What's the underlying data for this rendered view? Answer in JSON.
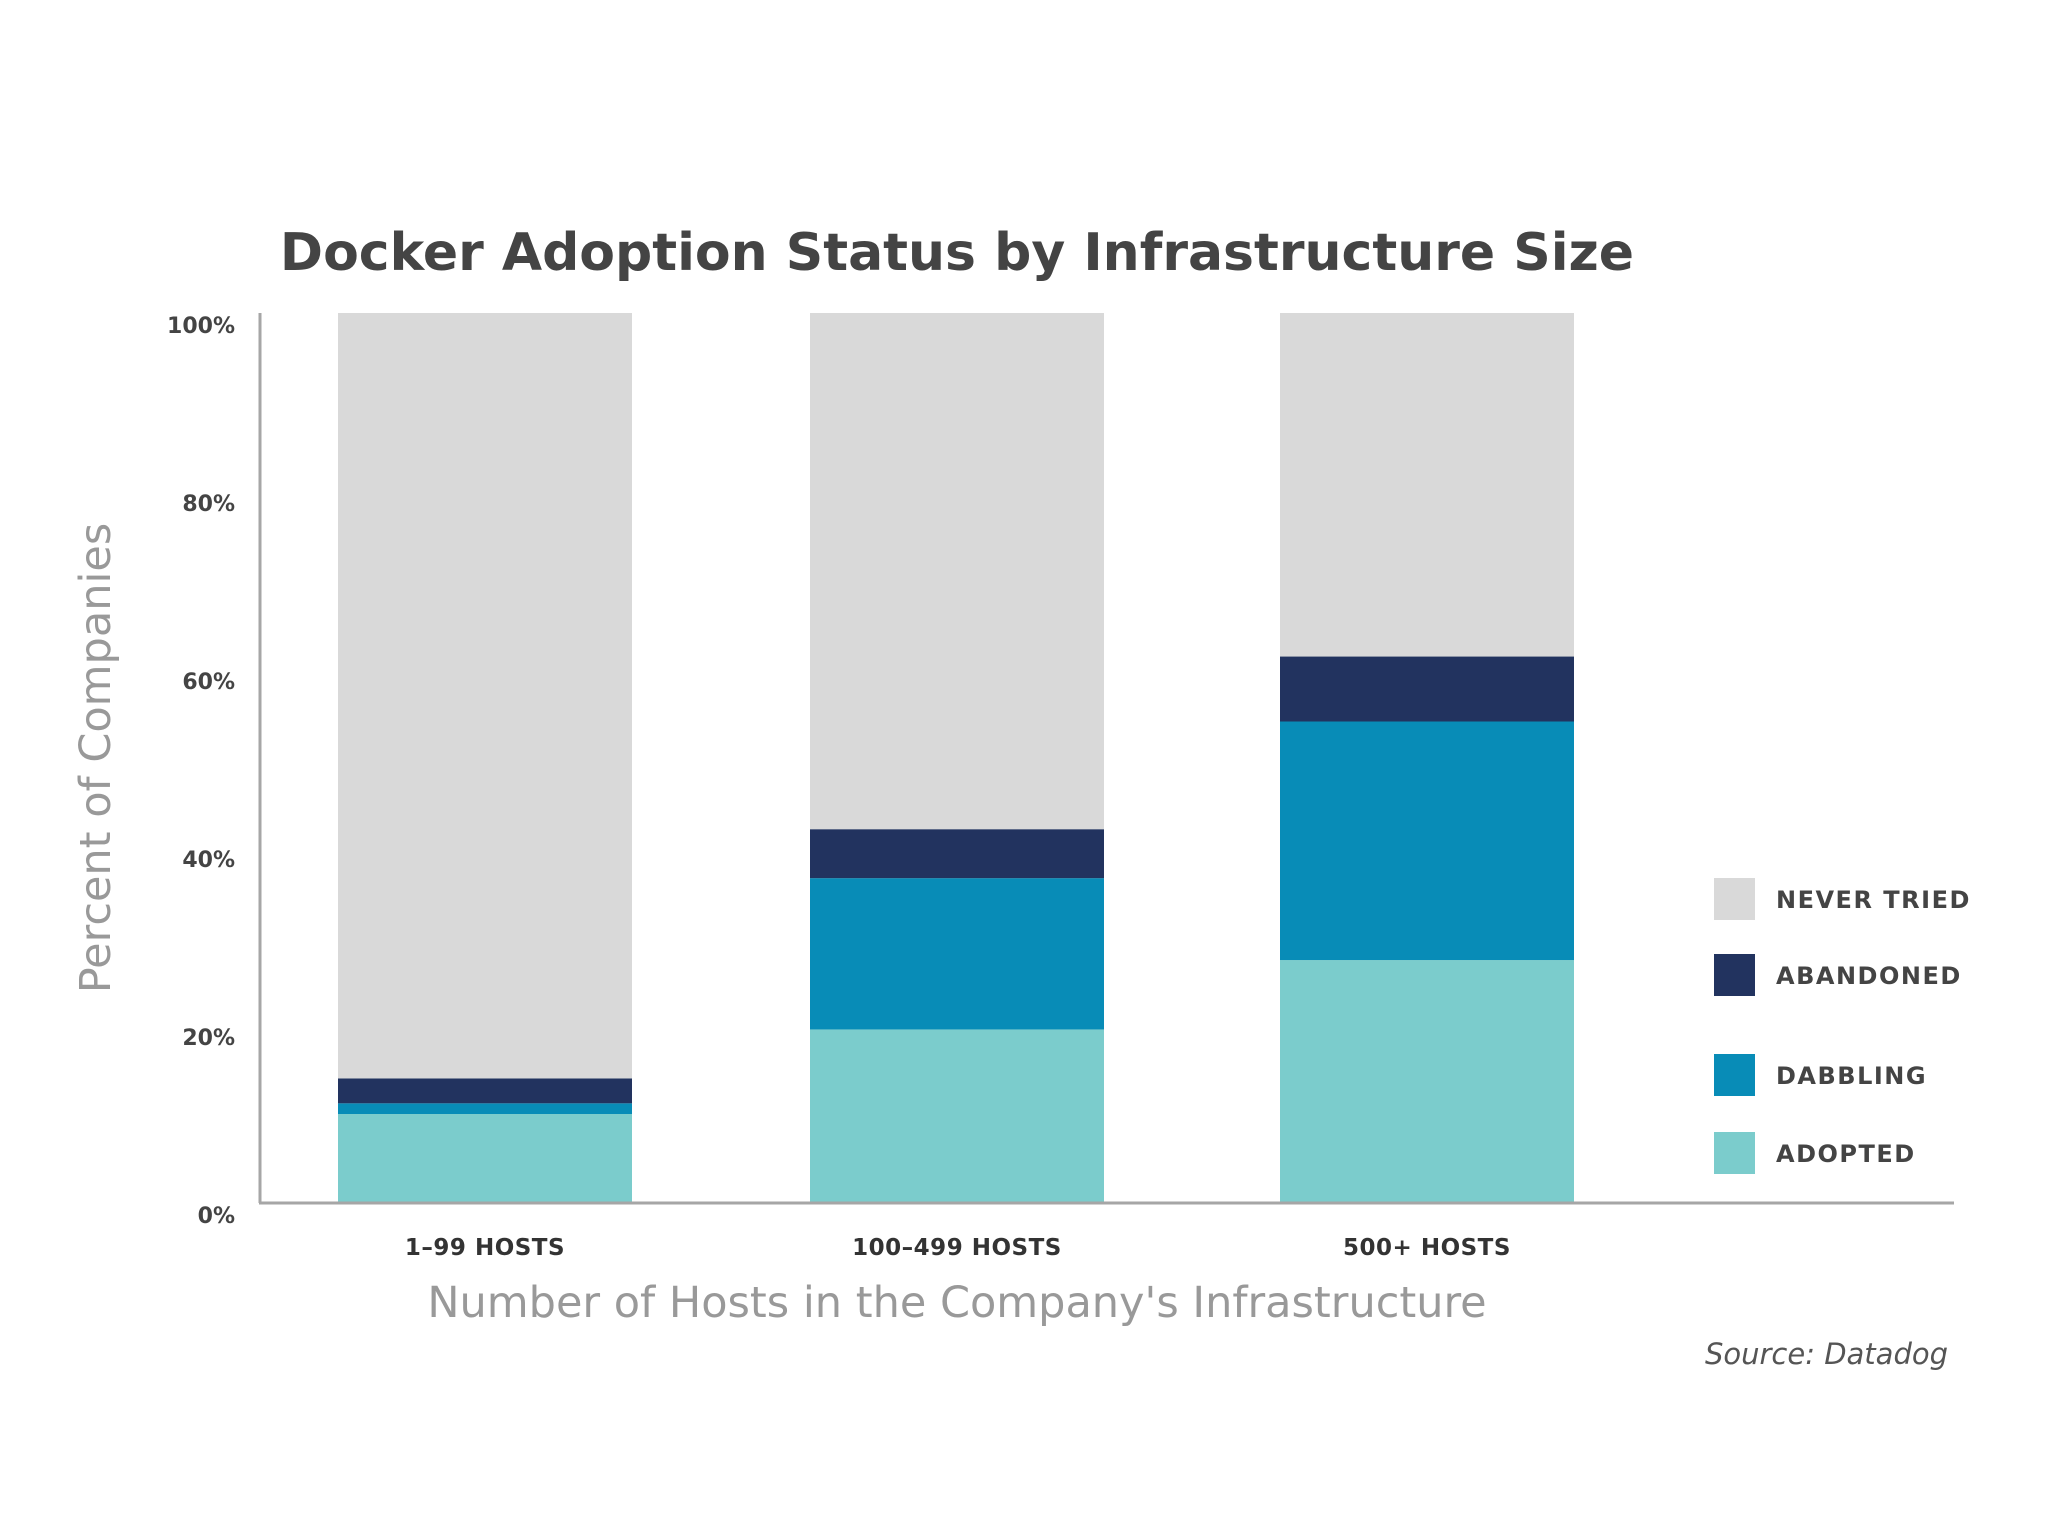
{
  "chart_data": {
    "type": "bar",
    "stacked": true,
    "title": "Docker Adoption Status by Infrastructure Size",
    "xlabel": "Number of Hosts in the Company's Infrastructure",
    "ylabel": "Percent of Companies",
    "ylim": [
      0,
      100
    ],
    "yticks": [
      0,
      20,
      40,
      60,
      80,
      100
    ],
    "ytick_labels": [
      "0%",
      "20%",
      "40%",
      "60%",
      "80%",
      "100%"
    ],
    "categories": [
      "1–99 HOSTS",
      "100–499 HOSTS",
      "500+ HOSTS"
    ],
    "series": [
      {
        "name": "ADOPTED",
        "color": "#7bcccc",
        "values": [
          10,
          19.5,
          27.3
        ]
      },
      {
        "name": "DABBLING",
        "color": "#088cb7",
        "values": [
          1.2,
          17,
          26.8
        ]
      },
      {
        "name": "ABANDONED",
        "color": "#22335f",
        "values": [
          2.8,
          5.5,
          7.3
        ]
      },
      {
        "name": "NEVER TRIED",
        "color": "#d9d9d9",
        "values": [
          86,
          58,
          38.6
        ]
      }
    ],
    "legend": {
      "placement": "right",
      "order": [
        "NEVER TRIED",
        "ABANDONED",
        "DABBLING",
        "ADOPTED"
      ]
    },
    "grid": false,
    "source": "Source: Datadog"
  }
}
